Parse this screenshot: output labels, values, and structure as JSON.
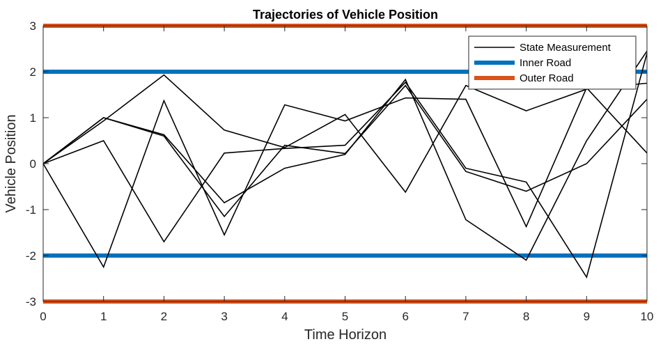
{
  "chart_data": {
    "type": "line",
    "title": "Trajectories of Vehicle Position",
    "xlabel": "Time Horizon",
    "ylabel": "Vehicle Position",
    "xlim": [
      0,
      10
    ],
    "ylim": [
      -3,
      3
    ],
    "xticks": [
      "0",
      "1",
      "2",
      "3",
      "4",
      "5",
      "6",
      "7",
      "8",
      "9",
      "10"
    ],
    "yticks": [
      "-3",
      "-2",
      "-1",
      "0",
      "1",
      "2",
      "3"
    ],
    "grid": false,
    "legend_position": "top-right",
    "legend": [
      {
        "label": "State Measurement",
        "color": "#000000",
        "kind": "thin"
      },
      {
        "label": "Inner Road",
        "color": "#0072BD",
        "kind": "thick"
      },
      {
        "label": "Outer Road",
        "color": "#D95319",
        "kind": "thick"
      }
    ],
    "series": [
      {
        "values": [
          0,
          0.5,
          -1.7,
          0.23,
          0.33,
          0.4,
          1.77,
          -0.1,
          -0.4,
          -2.47,
          2.4
        ]
      },
      {
        "values": [
          0,
          1.0,
          0.6,
          -1.15,
          0.4,
          0.22,
          1.7,
          -0.17,
          -0.6,
          0.0,
          1.4
        ]
      },
      {
        "values": [
          0,
          -2.25,
          1.37,
          -1.55,
          1.28,
          0.93,
          1.43,
          1.4,
          -1.37,
          1.65,
          0.23
        ]
      },
      {
        "values": [
          0,
          0.93,
          1.93,
          0.73,
          0.35,
          1.07,
          -0.62,
          1.7,
          1.15,
          1.62,
          1.75
        ]
      },
      {
        "values": [
          0,
          1.0,
          0.63,
          -0.85,
          -0.1,
          0.2,
          1.83,
          -1.22,
          -2.1,
          0.5,
          2.45
        ]
      }
    ],
    "reference_lines": [
      {
        "name": "Inner Road",
        "values": [
          2,
          -2
        ],
        "color": "#0072BD"
      },
      {
        "name": "Outer Road",
        "values": [
          3,
          -3
        ],
        "color": "#D95319"
      }
    ]
  }
}
